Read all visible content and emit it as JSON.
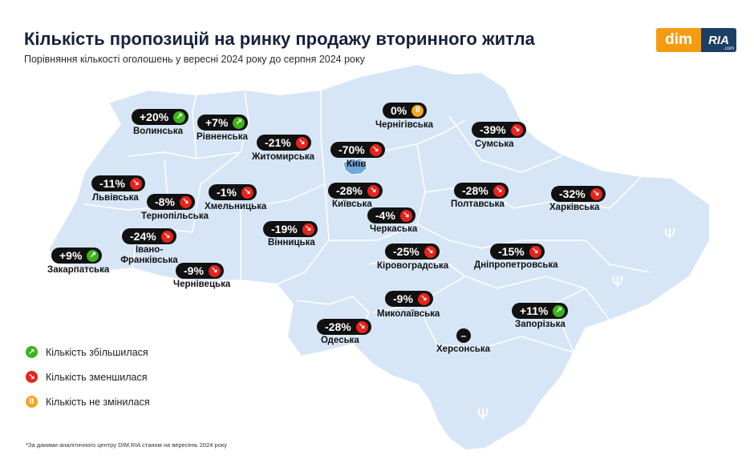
{
  "title": "Кількість пропозицій на ринку продажу вторинного житла",
  "subtitle": "Порівняння кількості оголошень у вересні 2024 року до серпня 2024 року",
  "logo": {
    "dim": "dim",
    "ria": "RIA",
    "ria_suffix": ".com"
  },
  "colors": {
    "up": "#3cb319",
    "down": "#e8231c",
    "same": "#f5a623",
    "map_fill": "#d7e6f6",
    "map_border": "#ffffff"
  },
  "regions": [
    {
      "name": "Волинська",
      "value": "+20%",
      "trend": "up"
    },
    {
      "name": "Рівненська",
      "value": "+7%",
      "trend": "up"
    },
    {
      "name": "Житомирська",
      "value": "-21%",
      "trend": "down"
    },
    {
      "name": "Чернігівська",
      "value": "0%",
      "trend": "same"
    },
    {
      "name": "Сумська",
      "value": "-39%",
      "trend": "down"
    },
    {
      "name": "Київ",
      "value": "-70%",
      "trend": "down"
    },
    {
      "name": "Львівська",
      "value": "-11%",
      "trend": "down"
    },
    {
      "name": "Тернопільська",
      "value": "-8%",
      "trend": "down"
    },
    {
      "name": "Хмельницька",
      "value": "-1%",
      "trend": "down"
    },
    {
      "name": "Київська",
      "value": "-28%",
      "trend": "down"
    },
    {
      "name": "Полтавська",
      "value": "-28%",
      "trend": "down"
    },
    {
      "name": "Харківська",
      "value": "-32%",
      "trend": "down"
    },
    {
      "name": "Черкаська",
      "value": "-4%",
      "trend": "down"
    },
    {
      "name": "Вінницька",
      "value": "-19%",
      "trend": "down"
    },
    {
      "name": "Івано-Франківська",
      "value": "-24%",
      "trend": "down"
    },
    {
      "name": "Закарпатська",
      "value": "+9%",
      "trend": "up"
    },
    {
      "name": "Чернівецька",
      "value": "-9%",
      "trend": "down"
    },
    {
      "name": "Кіровоградська",
      "value": "-25%",
      "trend": "down"
    },
    {
      "name": "Дніпропетровська",
      "value": "-15%",
      "trend": "down"
    },
    {
      "name": "Миколаївська",
      "value": "-9%",
      "trend": "down"
    },
    {
      "name": "Запорізька",
      "value": "+11%",
      "trend": "up"
    },
    {
      "name": "Одеська",
      "value": "-28%",
      "trend": "down"
    },
    {
      "name": "Херсонська",
      "value": "",
      "trend": "none"
    }
  ],
  "kherson_symbol": "–",
  "legend": [
    {
      "label": "Кількість збільшилася",
      "trend": "up"
    },
    {
      "label": "Кількість зменшилася",
      "trend": "down"
    },
    {
      "label": "Кількість не змінилася",
      "trend": "same"
    }
  ],
  "footnote": "*За даними аналітичного центру DIM.RIA станом на вересень 2024 року"
}
